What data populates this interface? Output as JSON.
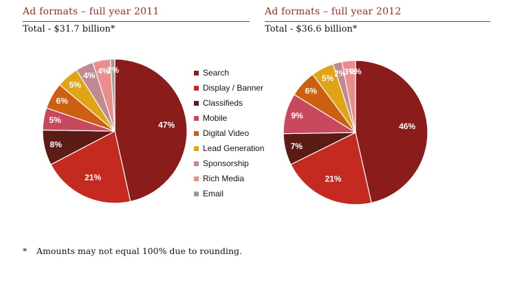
{
  "legend": {
    "items": [
      {
        "label": "Search",
        "color": "#8b1c1c"
      },
      {
        "label": "Display / Banner",
        "color": "#c42a1f"
      },
      {
        "label": "Classifieds",
        "color": "#5a1c14"
      },
      {
        "label": "Mobile",
        "color": "#c8485e"
      },
      {
        "label": "Digital Video",
        "color": "#cc6010"
      },
      {
        "label": "Lead Generation",
        "color": "#e1a416"
      },
      {
        "label": "Sponsorship",
        "color": "#c08a90"
      },
      {
        "label": "Rich Media",
        "color": "#eb8d8d"
      },
      {
        "label": "Email",
        "color": "#9a9a9a"
      }
    ]
  },
  "footnote": {
    "marker": "*",
    "text": "Amounts may not equal 100% due to rounding."
  },
  "chart_data": [
    {
      "type": "pie",
      "title": "Ad formats – full year 2011",
      "subtitle": "Total - $31.7 billion*",
      "categories": [
        "Search",
        "Display / Banner",
        "Classifieds",
        "Mobile",
        "Digital Video",
        "Lead Generation",
        "Sponsorship",
        "Rich Media",
        "Email"
      ],
      "values": [
        47,
        21,
        8,
        5,
        6,
        5,
        4,
        4,
        1
      ],
      "data_labels": [
        "47%",
        "21%",
        "8%",
        "5%",
        "6%",
        "5%",
        "4%",
        "4%",
        "1%"
      ],
      "legend_placement": "right"
    },
    {
      "type": "pie",
      "title": "Ad formats – full year 2012",
      "subtitle": "Total - $36.6 billion*",
      "categories": [
        "Search",
        "Display / Banner",
        "Classifieds",
        "Mobile",
        "Digital Video",
        "Lead Generation",
        "Sponsorship",
        "Rich Media",
        "Email"
      ],
      "values": [
        46,
        21,
        7,
        9,
        6,
        5,
        2,
        3,
        0
      ],
      "data_labels": [
        "46%",
        "21%",
        "7%",
        "9%",
        "6%",
        "5%",
        "2%",
        "3%",
        "0%"
      ],
      "legend_placement": "left"
    }
  ]
}
